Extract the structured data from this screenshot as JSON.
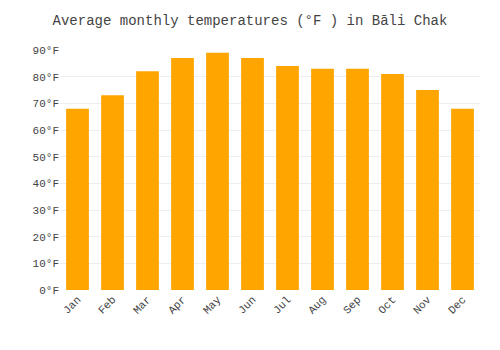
{
  "chart_data": {
    "type": "bar",
    "title": "Average monthly temperatures (°F ) in Bāli Chak",
    "categories": [
      "Jan",
      "Feb",
      "Mar",
      "Apr",
      "May",
      "Jun",
      "Jul",
      "Aug",
      "Sep",
      "Oct",
      "Nov",
      "Dec"
    ],
    "values": [
      68,
      73,
      82,
      87,
      89,
      87,
      84,
      83,
      83,
      81,
      75,
      68
    ],
    "color": "#FFA500",
    "ylim": [
      0,
      90
    ],
    "yticks": [
      {
        "value": 0,
        "label": "0°F"
      },
      {
        "value": 10,
        "label": "10°F"
      },
      {
        "value": 20,
        "label": "20°F"
      },
      {
        "value": 30,
        "label": "30°F"
      },
      {
        "value": 40,
        "label": "40°F"
      },
      {
        "value": 50,
        "label": "50°F"
      },
      {
        "value": 60,
        "label": "60°F"
      },
      {
        "value": 70,
        "label": "70°F"
      },
      {
        "value": 80,
        "label": "80°F"
      },
      {
        "value": 90,
        "label": "90°F"
      }
    ],
    "grid": true
  }
}
